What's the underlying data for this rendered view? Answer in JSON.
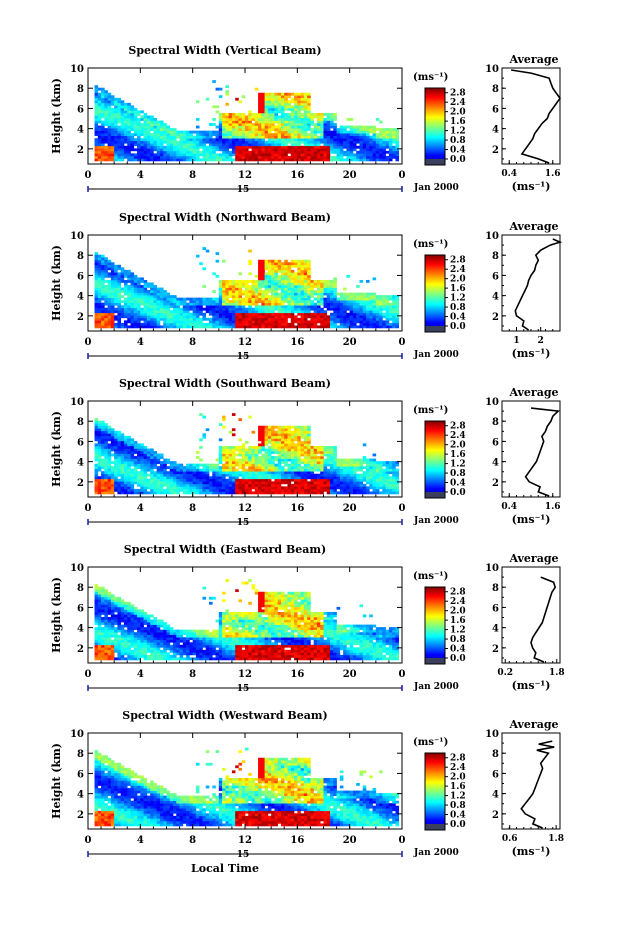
{
  "chart_data": [
    {
      "type": "heatmap",
      "title": "Spectral Width (Vertical Beam)",
      "ylabel": "Height (km)",
      "xlim": [
        0,
        24
      ],
      "ylim": [
        0.5,
        10
      ],
      "x_ticks": [
        "0",
        "4",
        "8",
        "12",
        "16",
        "20",
        "0"
      ],
      "y_ticks": [
        "2",
        "4",
        "6",
        "8",
        "10"
      ],
      "date_marker": "15",
      "date_label": "Jan 2000",
      "colorbar": {
        "unit": "(ms⁻¹)",
        "ticks": [
          "0.0",
          "0.4",
          "0.8",
          "1.2",
          "1.6",
          "2.0",
          "2.4",
          "2.8"
        ],
        "range": [
          0.0,
          3.0
        ]
      },
      "average": {
        "title": "Average",
        "xlabel": "(ms⁻¹)",
        "x_ticks": [
          "0.4",
          "1.6"
        ],
        "xlim": [
          0.2,
          1.8
        ],
        "y_ticks": [
          "2",
          "4",
          "6",
          "8",
          "10"
        ],
        "height": [
          0.6,
          1.0,
          1.5,
          2.0,
          2.5,
          3.0,
          3.5,
          4.0,
          4.5,
          5.0,
          5.5,
          6.0,
          6.5,
          7.0,
          7.5,
          8.0,
          8.5,
          9.0,
          9.5,
          9.8
        ],
        "values": [
          1.5,
          1.2,
          0.75,
          0.85,
          0.95,
          1.05,
          1.1,
          1.2,
          1.3,
          1.45,
          1.5,
          1.6,
          1.7,
          1.8,
          1.7,
          1.6,
          1.55,
          1.5,
          1.0,
          0.45
        ]
      }
    },
    {
      "type": "heatmap",
      "title": "Spectral Width (Northward Beam)",
      "ylabel": "Height (km)",
      "xlim": [
        0,
        24
      ],
      "ylim": [
        0.5,
        10
      ],
      "x_ticks": [
        "0",
        "4",
        "8",
        "12",
        "16",
        "20",
        "0"
      ],
      "y_ticks": [
        "2",
        "4",
        "6",
        "8",
        "10"
      ],
      "date_marker": "15",
      "date_label": "Jan 2000",
      "colorbar": {
        "unit": "(ms⁻¹)",
        "ticks": [
          "0.0",
          "0.4",
          "0.8",
          "1.2",
          "1.6",
          "2.0",
          "2.4",
          "2.8"
        ],
        "range": [
          0.0,
          3.0
        ]
      },
      "average": {
        "title": "Average",
        "xlabel": "(ms⁻¹)",
        "x_ticks": [
          "1",
          "2"
        ],
        "xlim": [
          0.4,
          2.8
        ],
        "y_ticks": [
          "2",
          "4",
          "6",
          "8",
          "10"
        ],
        "height": [
          0.6,
          1.0,
          1.5,
          2.0,
          2.5,
          3.0,
          3.5,
          4.0,
          4.5,
          5.0,
          5.5,
          6.0,
          6.5,
          7.0,
          7.5,
          8.0,
          8.5,
          9.0,
          9.3,
          9.6
        ],
        "values": [
          1.5,
          1.25,
          1.3,
          1.0,
          0.95,
          1.05,
          1.15,
          1.25,
          1.35,
          1.45,
          1.5,
          1.6,
          1.75,
          1.8,
          1.9,
          1.8,
          2.0,
          2.4,
          2.8,
          2.5
        ]
      }
    },
    {
      "type": "heatmap",
      "title": "Spectral Width (Southward Beam)",
      "ylabel": "Height (km)",
      "xlim": [
        0,
        24
      ],
      "ylim": [
        0.5,
        10
      ],
      "x_ticks": [
        "0",
        "4",
        "8",
        "12",
        "16",
        "20",
        "0"
      ],
      "y_ticks": [
        "2",
        "4",
        "6",
        "8",
        "10"
      ],
      "date_marker": "15",
      "date_label": "Jan 2000",
      "colorbar": {
        "unit": "(ms⁻¹)",
        "ticks": [
          "0.0",
          "0.4",
          "0.8",
          "1.2",
          "1.6",
          "2.0",
          "2.4",
          "2.8"
        ],
        "range": [
          0.0,
          3.0
        ]
      },
      "average": {
        "title": "Average",
        "xlabel": "(ms⁻¹)",
        "x_ticks": [
          "0.4",
          "1.6"
        ],
        "xlim": [
          0.2,
          1.8
        ],
        "y_ticks": [
          "2",
          "4",
          "6",
          "8",
          "10"
        ],
        "height": [
          0.6,
          1.0,
          1.5,
          2.0,
          2.5,
          3.0,
          3.5,
          4.0,
          4.5,
          5.0,
          5.5,
          6.0,
          6.5,
          7.0,
          7.5,
          8.0,
          8.5,
          9.0,
          9.3
        ],
        "values": [
          1.5,
          1.2,
          1.25,
          0.95,
          0.85,
          0.95,
          1.05,
          1.15,
          1.2,
          1.25,
          1.3,
          1.35,
          1.3,
          1.4,
          1.45,
          1.55,
          1.6,
          1.75,
          1.0
        ]
      }
    },
    {
      "type": "heatmap",
      "title": "Spectral Width (Eastward Beam)",
      "ylabel": "Height (km)",
      "xlim": [
        0,
        24
      ],
      "ylim": [
        0.5,
        10
      ],
      "x_ticks": [
        "0",
        "4",
        "8",
        "12",
        "16",
        "20",
        "0"
      ],
      "y_ticks": [
        "2",
        "4",
        "6",
        "8",
        "10"
      ],
      "date_marker": "15",
      "date_label": "Jan 2000",
      "colorbar": {
        "unit": "(ms⁻¹)",
        "ticks": [
          "0.0",
          "0.4",
          "0.8",
          "1.2",
          "1.6",
          "2.0",
          "2.4",
          "2.8"
        ],
        "range": [
          0.0,
          3.0
        ]
      },
      "average": {
        "title": "Average",
        "xlabel": "(ms⁻¹)",
        "x_ticks": [
          "0.2",
          "1.8"
        ],
        "xlim": [
          0.1,
          1.9
        ],
        "y_ticks": [
          "2",
          "4",
          "6",
          "8",
          "10"
        ],
        "height": [
          0.6,
          1.0,
          1.5,
          2.0,
          2.5,
          3.0,
          3.5,
          4.0,
          4.5,
          5.0,
          5.5,
          6.0,
          6.5,
          7.0,
          7.5,
          8.0,
          8.5,
          9.0
        ],
        "values": [
          1.4,
          1.1,
          1.15,
          1.05,
          1.0,
          1.05,
          1.15,
          1.25,
          1.35,
          1.4,
          1.45,
          1.5,
          1.55,
          1.6,
          1.65,
          1.75,
          1.7,
          1.3
        ]
      }
    },
    {
      "type": "heatmap",
      "title": "Spectral Width (Westward Beam)",
      "ylabel": "Height (km)",
      "xlabel": "Local Time",
      "xlim": [
        0,
        24
      ],
      "ylim": [
        0.5,
        10
      ],
      "x_ticks": [
        "0",
        "4",
        "8",
        "12",
        "16",
        "20",
        "0"
      ],
      "y_ticks": [
        "2",
        "4",
        "6",
        "8",
        "10"
      ],
      "date_marker": "15",
      "date_label": "Jan 2000",
      "colorbar": {
        "unit": "(ms⁻¹)",
        "ticks": [
          "0.0",
          "0.4",
          "0.8",
          "1.2",
          "1.6",
          "2.0",
          "2.4",
          "2.8"
        ],
        "range": [
          0.0,
          3.0
        ]
      },
      "average": {
        "title": "Average",
        "xlabel": "(ms⁻¹)",
        "x_ticks": [
          "0.6",
          "1.8"
        ],
        "xlim": [
          0.4,
          1.9
        ],
        "y_ticks": [
          "2",
          "4",
          "6",
          "8",
          "10"
        ],
        "height": [
          0.6,
          1.0,
          1.5,
          2.0,
          2.5,
          3.0,
          3.5,
          4.0,
          4.5,
          5.0,
          5.5,
          6.0,
          6.5,
          7.0,
          7.5,
          8.0,
          8.3,
          8.6,
          8.9,
          9.2
        ],
        "values": [
          1.45,
          1.2,
          1.25,
          1.0,
          0.9,
          1.0,
          1.1,
          1.2,
          1.25,
          1.3,
          1.35,
          1.4,
          1.45,
          1.4,
          1.5,
          1.6,
          1.3,
          1.75,
          1.35,
          1.7
        ]
      }
    }
  ]
}
